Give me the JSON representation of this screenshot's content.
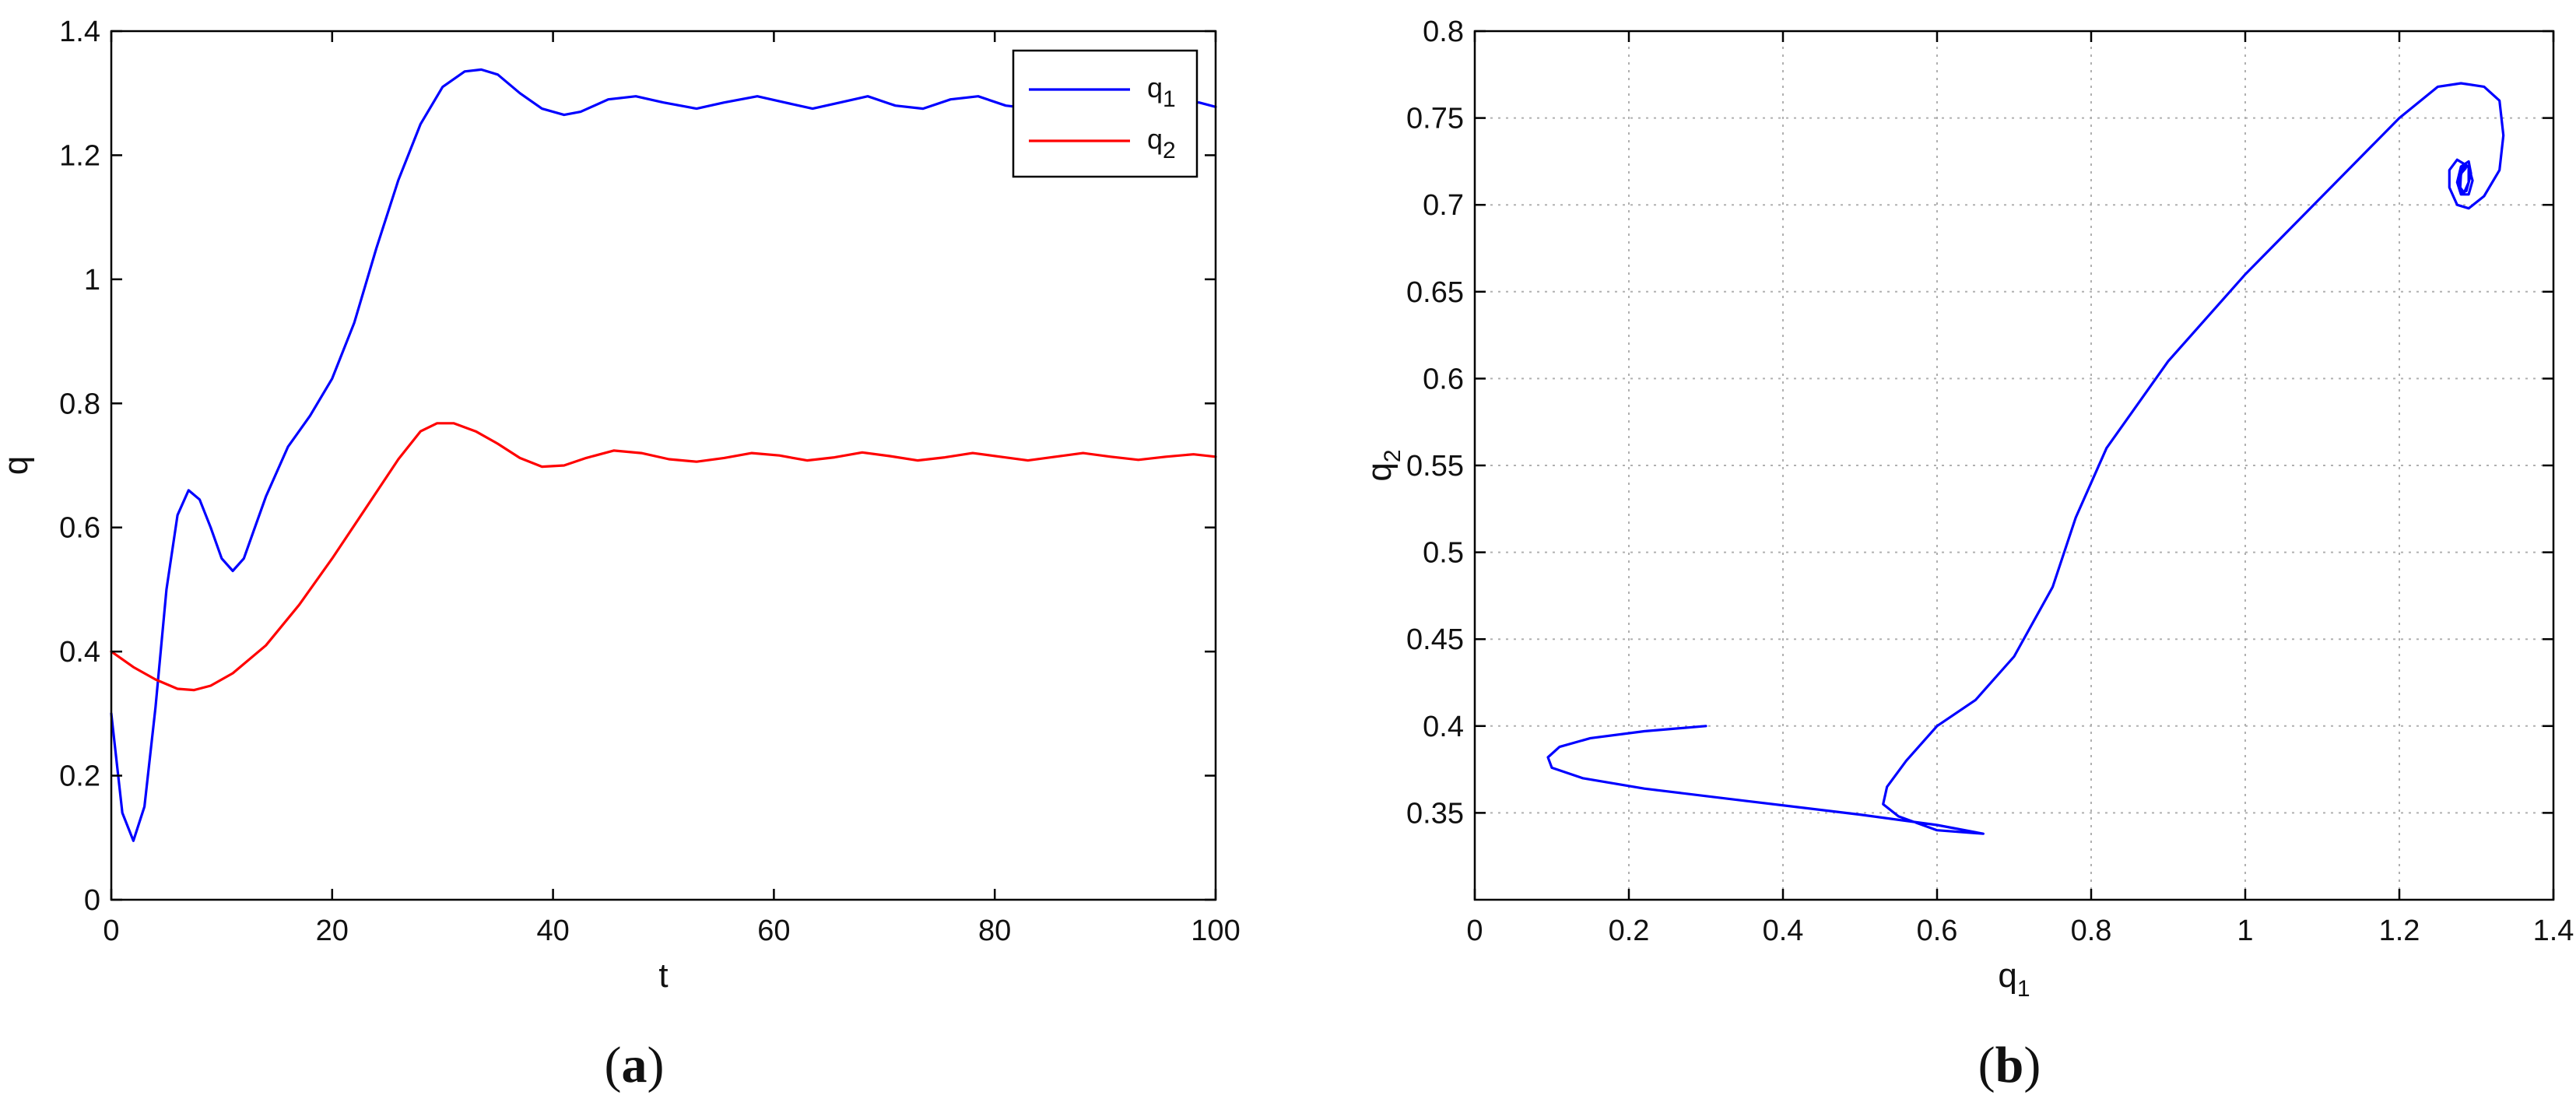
{
  "chart_data": [
    {
      "id": "a",
      "type": "line",
      "caption_letter": "a",
      "xlabel": "t",
      "ylabel": "q",
      "xlim": [
        0,
        100
      ],
      "ylim": [
        0,
        1.4
      ],
      "xticks": [
        "0",
        "20",
        "40",
        "60",
        "80",
        "100"
      ],
      "yticks": [
        "0",
        "0.2",
        "0.4",
        "0.6",
        "0.8",
        "1",
        "1.2",
        "1.4"
      ],
      "grid": false,
      "legend_position": "top-right",
      "series": [
        {
          "name": "q",
          "subscript": "1",
          "color": "#0000ff",
          "x": [
            0,
            1,
            2,
            3,
            4,
            5,
            6,
            7,
            8,
            9,
            10,
            11,
            12,
            13,
            14,
            16,
            18,
            20,
            22,
            24,
            26,
            28,
            30,
            32,
            33.5,
            35,
            37,
            39,
            41,
            42.5,
            45,
            47.5,
            50,
            53,
            55.5,
            58.5,
            61,
            63.5,
            66,
            68.5,
            71,
            73.5,
            76,
            78.5,
            81,
            83.5,
            86,
            88.5,
            91,
            93.5,
            96,
            98.5,
            100
          ],
          "y": [
            0.3,
            0.14,
            0.095,
            0.15,
            0.31,
            0.5,
            0.62,
            0.66,
            0.645,
            0.6,
            0.55,
            0.53,
            0.55,
            0.6,
            0.65,
            0.73,
            0.78,
            0.84,
            0.93,
            1.05,
            1.16,
            1.25,
            1.31,
            1.335,
            1.338,
            1.33,
            1.3,
            1.275,
            1.265,
            1.27,
            1.29,
            1.295,
            1.285,
            1.275,
            1.285,
            1.295,
            1.285,
            1.275,
            1.285,
            1.295,
            1.28,
            1.275,
            1.29,
            1.295,
            1.28,
            1.275,
            1.29,
            1.29,
            1.28,
            1.275,
            1.285,
            1.285,
            1.278
          ]
        },
        {
          "name": "q",
          "subscript": "2",
          "color": "#ff0000",
          "x": [
            0,
            2,
            4,
            6,
            7.5,
            9,
            11,
            14,
            17,
            20,
            23,
            26,
            28,
            29.5,
            31,
            33,
            35,
            37,
            39,
            41,
            43,
            45.5,
            48,
            50.5,
            53,
            55.5,
            58,
            60.5,
            63,
            65.5,
            68,
            70.5,
            73,
            75.5,
            78,
            80.5,
            83,
            85.5,
            88,
            90.5,
            93,
            95.5,
            98,
            100
          ],
          "y": [
            0.4,
            0.375,
            0.355,
            0.34,
            0.338,
            0.345,
            0.365,
            0.41,
            0.475,
            0.55,
            0.63,
            0.71,
            0.755,
            0.768,
            0.768,
            0.755,
            0.735,
            0.712,
            0.698,
            0.7,
            0.712,
            0.724,
            0.72,
            0.71,
            0.706,
            0.712,
            0.72,
            0.716,
            0.708,
            0.713,
            0.721,
            0.715,
            0.708,
            0.713,
            0.72,
            0.714,
            0.708,
            0.714,
            0.72,
            0.714,
            0.709,
            0.714,
            0.718,
            0.714
          ]
        }
      ]
    },
    {
      "id": "b",
      "type": "line",
      "caption_letter": "b",
      "xlabel": "q",
      "xlabel_sub": "1",
      "ylabel": "q",
      "ylabel_sub": "2",
      "xlim": [
        0,
        1.4
      ],
      "ylim": [
        0.3,
        0.8
      ],
      "xticks": [
        "0",
        "0.2",
        "0.4",
        "0.6",
        "0.8",
        "1",
        "1.2",
        "1.4"
      ],
      "yticks": [
        "0.35",
        "0.4",
        "0.45",
        "0.5",
        "0.55",
        "0.6",
        "0.65",
        "0.7",
        "0.75",
        "0.8"
      ],
      "grid": true,
      "series": [
        {
          "name": "",
          "color": "#0000ff",
          "x": [
            0.3,
            0.22,
            0.15,
            0.11,
            0.095,
            0.1,
            0.14,
            0.22,
            0.35,
            0.5,
            0.6,
            0.66,
            0.6,
            0.55,
            0.53,
            0.535,
            0.56,
            0.6,
            0.65,
            0.7,
            0.75,
            0.78,
            0.82,
            0.9,
            1.0,
            1.1,
            1.2,
            1.25,
            1.28,
            1.31,
            1.33,
            1.335,
            1.33,
            1.31,
            1.29,
            1.275,
            1.265,
            1.265,
            1.275,
            1.29,
            1.295,
            1.29,
            1.28,
            1.275,
            1.28,
            1.29,
            1.293,
            1.287,
            1.28,
            1.278,
            1.283,
            1.29,
            1.29,
            1.284,
            1.279,
            1.28,
            1.286
          ],
          "y": [
            0.4,
            0.397,
            0.393,
            0.388,
            0.382,
            0.376,
            0.37,
            0.364,
            0.357,
            0.349,
            0.343,
            0.338,
            0.34,
            0.348,
            0.355,
            0.365,
            0.38,
            0.4,
            0.415,
            0.44,
            0.48,
            0.52,
            0.56,
            0.61,
            0.66,
            0.705,
            0.75,
            0.768,
            0.77,
            0.768,
            0.76,
            0.74,
            0.72,
            0.705,
            0.698,
            0.7,
            0.71,
            0.72,
            0.726,
            0.722,
            0.714,
            0.706,
            0.706,
            0.713,
            0.722,
            0.725,
            0.718,
            0.708,
            0.707,
            0.714,
            0.722,
            0.722,
            0.713,
            0.707,
            0.71,
            0.718,
            0.721
          ]
        }
      ]
    }
  ]
}
